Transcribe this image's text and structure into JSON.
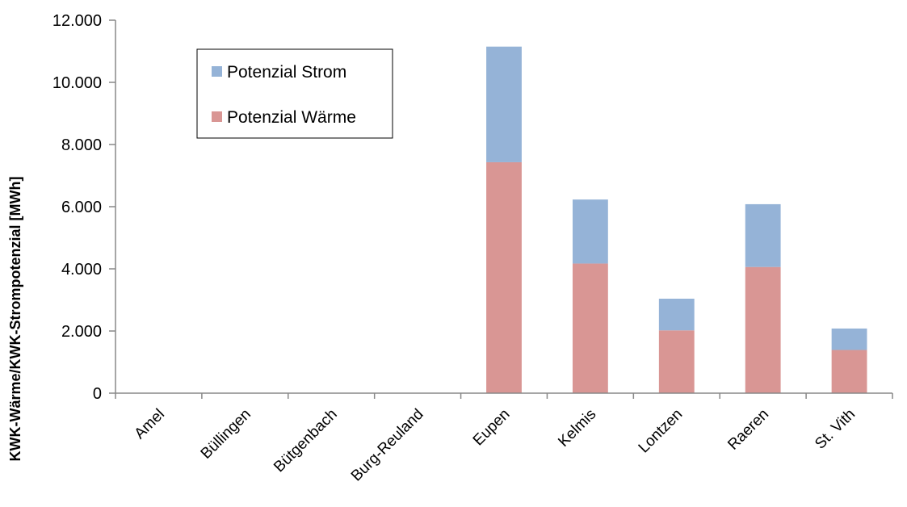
{
  "chart_data": {
    "type": "bar",
    "stacked": true,
    "title": "",
    "xlabel": "",
    "ylabel": "KWK-Wärme/KWK-Strompotenzial   [MWh]",
    "categories": [
      "Amel",
      "Büllingen",
      "Bütgenbach",
      "Burg-Reuland",
      "Eupen",
      "Kelmis",
      "Lontzen",
      "Raeren",
      "St. Vith"
    ],
    "series": [
      {
        "name": "Potenzial Wärme",
        "color": "#d99694",
        "values": [
          0,
          0,
          0,
          0,
          7430,
          4170,
          2020,
          4060,
          1390
        ]
      },
      {
        "name": "Potenzial Strom",
        "color": "#95b3d7",
        "values": [
          0,
          0,
          0,
          0,
          3720,
          2060,
          1020,
          2020,
          690
        ]
      }
    ],
    "legend_order": [
      "Potenzial Strom",
      "Potenzial Wärme"
    ],
    "legend_position": "top-left",
    "ylim": [
      0,
      12000
    ],
    "yticks": [
      0,
      2000,
      4000,
      6000,
      8000,
      10000,
      12000
    ],
    "ytick_labels": [
      "0",
      "2.000",
      "4.000",
      "6.000",
      "8.000",
      "10.000",
      "12.000"
    ],
    "grid": false
  }
}
